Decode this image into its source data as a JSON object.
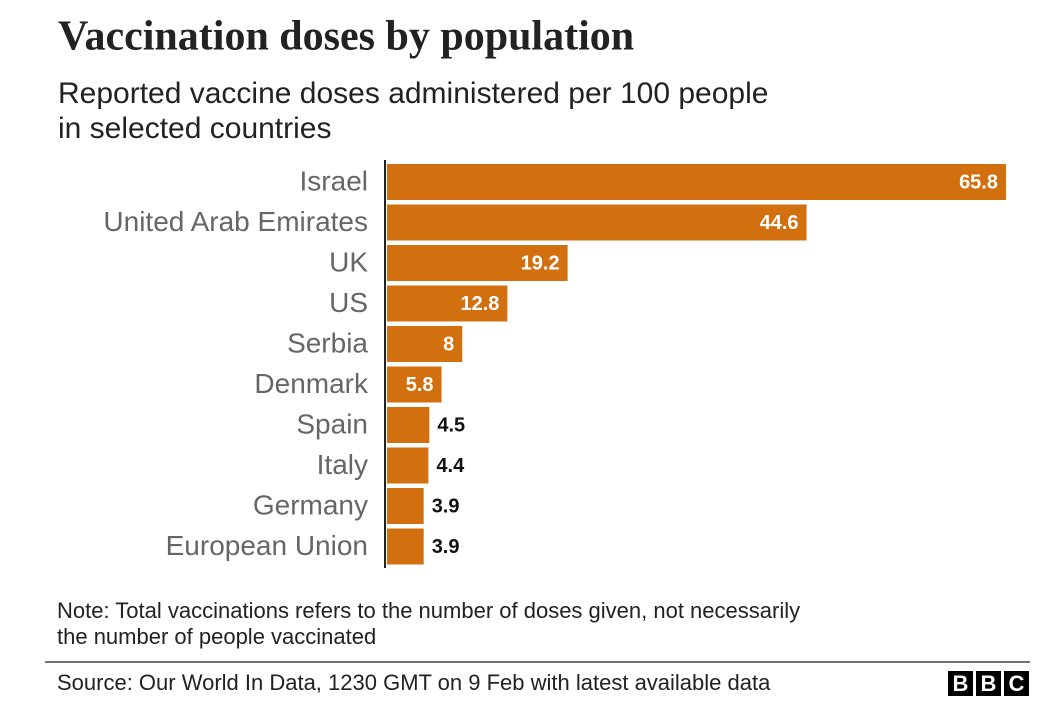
{
  "chart_data": {
    "type": "bar",
    "orientation": "horizontal",
    "title": "Vaccination doses by population",
    "subtitle": [
      "Reported vaccine doses administered per 100 people",
      "in selected countries"
    ],
    "categories": [
      "Israel",
      "United Arab Emirates",
      "UK",
      "US",
      "Serbia",
      "Denmark",
      "Spain",
      "Italy",
      "Germany",
      "European Union"
    ],
    "values": [
      65.8,
      44.6,
      19.2,
      12.8,
      8,
      5.8,
      4.5,
      4.4,
      3.9,
      3.9
    ],
    "color": "#d2700f",
    "note": [
      "Note: Total vaccinations refers to the number of doses given, not necessarily",
      "the number of people vaccinated"
    ],
    "source": "Source: Our World In Data, 1230 GMT on 9 Feb with latest available data",
    "logo": [
      "B",
      "B",
      "C"
    ]
  }
}
